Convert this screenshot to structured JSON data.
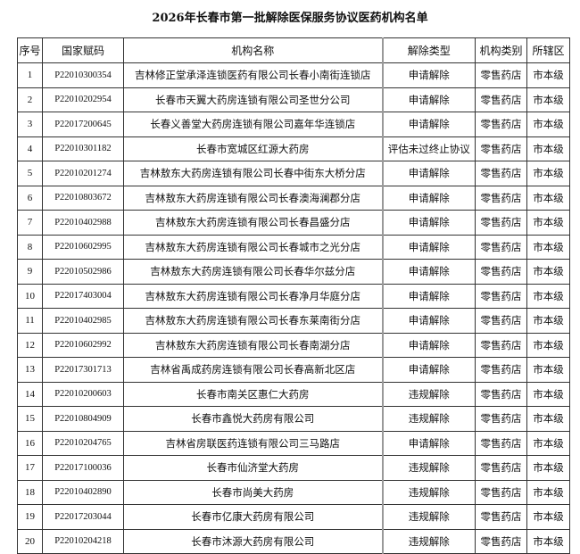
{
  "title": "2026年长春市第一批解除医保服务协议医药机构名单",
  "headers": [
    "序号",
    "国家赋码",
    "机构名称",
    "解除类型",
    "机构类别",
    "所辖区"
  ],
  "rows": [
    [
      "1",
      "P22010300354",
      "吉林修正堂承泽连锁医药有限公司长春小南街连锁店",
      "申请解除",
      "零售药店",
      "市本级"
    ],
    [
      "2",
      "P22010202954",
      "长春市天翼大药房连锁有限公司圣世分公司",
      "申请解除",
      "零售药店",
      "市本级"
    ],
    [
      "3",
      "P22017200645",
      "长春义善堂大药房连锁有限公司嘉年华连锁店",
      "申请解除",
      "零售药店",
      "市本级"
    ],
    [
      "4",
      "P22010301182",
      "长春市宽城区红源大药房",
      "评估未过终止协议",
      "零售药店",
      "市本级"
    ],
    [
      "5",
      "P22010201274",
      "吉林敖东大药房连锁有限公司长春中街东大桥分店",
      "申请解除",
      "零售药店",
      "市本级"
    ],
    [
      "6",
      "P22010803672",
      "吉林敖东大药房连锁有限公司长春澳海澜郡分店",
      "申请解除",
      "零售药店",
      "市本级"
    ],
    [
      "7",
      "P22010402988",
      "吉林敖东大药房连锁有限公司长春昌盛分店",
      "申请解除",
      "零售药店",
      "市本级"
    ],
    [
      "8",
      "P22010602995",
      "吉林敖东大药房连锁有限公司长春城市之光分店",
      "申请解除",
      "零售药店",
      "市本级"
    ],
    [
      "9",
      "P22010502986",
      "吉林敖东大药房连锁有限公司长春华尔兹分店",
      "申请解除",
      "零售药店",
      "市本级"
    ],
    [
      "10",
      "P22017403004",
      "吉林敖东大药房连锁有限公司长春净月华庭分店",
      "申请解除",
      "零售药店",
      "市本级"
    ],
    [
      "11",
      "P22010402985",
      "吉林敖东大药房连锁有限公司长春东莱南街分店",
      "申请解除",
      "零售药店",
      "市本级"
    ],
    [
      "12",
      "P22010602992",
      "吉林敖东大药房连锁有限公司长春南湖分店",
      "申请解除",
      "零售药店",
      "市本级"
    ],
    [
      "13",
      "P22017301713",
      "吉林省禹成药房连锁有限公司长春高新北区店",
      "申请解除",
      "零售药店",
      "市本级"
    ],
    [
      "14",
      "P22010200603",
      "长春市南关区惠仁大药房",
      "违规解除",
      "零售药店",
      "市本级"
    ],
    [
      "15",
      "P22010804909",
      "长春市鑫悦大药房有限公司",
      "违规解除",
      "零售药店",
      "市本级"
    ],
    [
      "16",
      "P22010204765",
      "吉林省房联医药连锁有限公司三马路店",
      "申请解除",
      "零售药店",
      "市本级"
    ],
    [
      "17",
      "P22017100036",
      "长春市仙济堂大药房",
      "违规解除",
      "零售药店",
      "市本级"
    ],
    [
      "18",
      "P22010402890",
      "长春市尚美大药房",
      "违规解除",
      "零售药店",
      "市本级"
    ],
    [
      "19",
      "P22017203044",
      "长春市亿康大药房有限公司",
      "违规解除",
      "零售药店",
      "市本级"
    ],
    [
      "20",
      "P22010204218",
      "长春市沐源大药房有限公司",
      "违规解除",
      "零售药店",
      "市本级"
    ]
  ]
}
